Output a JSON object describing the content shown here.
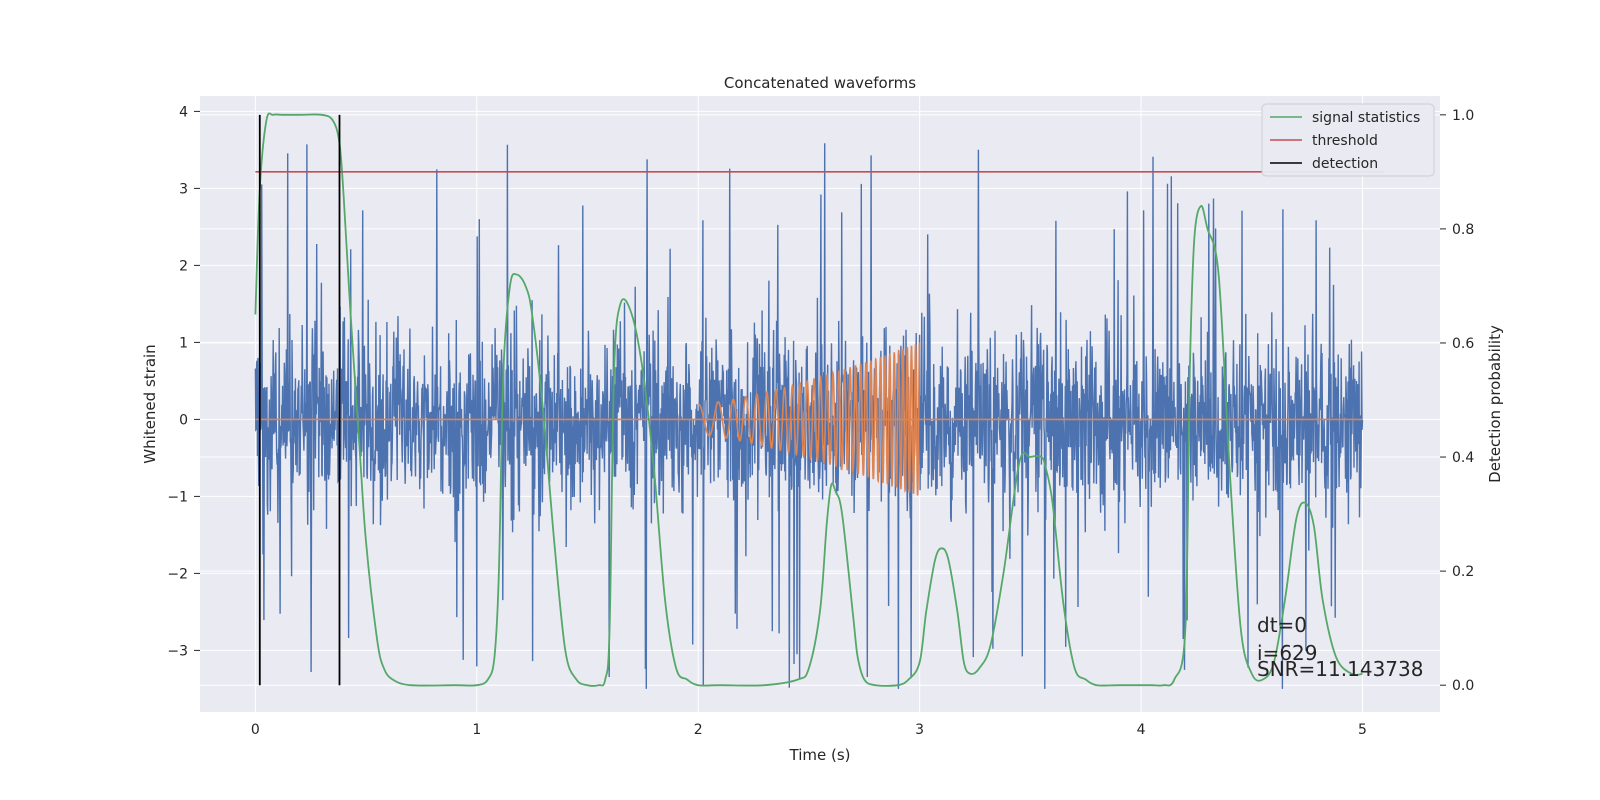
{
  "chart_data": {
    "type": "line",
    "title": "Concatenated waveforms",
    "xlabel": "Time (s)",
    "ylabel": "Whitened strain",
    "y2label": "Detection probability",
    "xlim": [
      -0.25,
      5.35
    ],
    "ylim": [
      -3.8,
      4.2
    ],
    "y2lim": [
      -0.047,
      1.033
    ],
    "xticks": [
      0,
      1,
      2,
      3,
      4,
      5
    ],
    "yticks": [
      -3,
      -2,
      -1,
      0,
      1,
      2,
      3,
      4
    ],
    "y2ticks": [
      0.0,
      0.2,
      0.4,
      0.6,
      0.8,
      1.0
    ],
    "y2ticklabels": [
      "0.0",
      "0.2",
      "0.4",
      "0.6",
      "0.8",
      "1.0"
    ],
    "ytick_labels": [
      "−3",
      "−2",
      "−1",
      "0",
      "1",
      "2",
      "3",
      "4"
    ],
    "grid": true,
    "colors": {
      "strain": "#4c72b0",
      "injection": "#dd8452",
      "signal_statistics": "#55a868",
      "threshold": "#c44e52",
      "detection": "#000000",
      "background": "#eaeaf2",
      "grid": "#ffffff"
    },
    "legend": {
      "location": "top-right",
      "entries": [
        "signal statistics",
        "threshold",
        "detection"
      ]
    },
    "series": [
      {
        "name": "signal statistics",
        "axis": "right",
        "x": [
          0,
          0.02,
          0.05,
          0.08,
          0.12,
          0.2,
          0.3,
          0.35,
          0.38,
          0.4,
          0.43,
          0.47,
          0.5,
          0.55,
          0.58,
          0.62,
          0.7,
          0.9,
          1.0,
          1.05,
          1.08,
          1.1,
          1.12,
          1.15,
          1.18,
          1.22,
          1.25,
          1.3,
          1.35,
          1.4,
          1.45,
          1.5,
          1.55,
          1.58,
          1.6,
          1.62,
          1.65,
          1.7,
          1.75,
          1.8,
          1.85,
          1.9,
          1.95,
          2.0,
          2.1,
          2.3,
          2.45,
          2.5,
          2.55,
          2.58,
          2.6,
          2.62,
          2.65,
          2.7,
          2.72,
          2.75,
          2.8,
          2.9,
          2.95,
          3.0,
          3.03,
          3.07,
          3.1,
          3.13,
          3.17,
          3.2,
          3.23,
          3.27,
          3.32,
          3.38,
          3.45,
          3.5,
          3.55,
          3.57,
          3.6,
          3.65,
          3.7,
          3.75,
          3.8,
          3.9,
          4.0,
          4.05,
          4.1,
          4.15,
          4.2,
          4.22,
          4.24,
          4.27,
          4.3,
          4.35,
          4.4,
          4.45,
          4.5,
          4.55,
          4.6,
          4.65,
          4.7,
          4.74,
          4.78,
          4.82,
          4.88,
          4.95,
          5.0
        ],
        "values": [
          0.65,
          0.87,
          0.99,
          1.0,
          1.0,
          1.0,
          1.0,
          0.99,
          0.95,
          0.85,
          0.65,
          0.42,
          0.25,
          0.08,
          0.03,
          0.01,
          0.0,
          0.0,
          0.0,
          0.01,
          0.05,
          0.2,
          0.55,
          0.7,
          0.72,
          0.7,
          0.65,
          0.48,
          0.25,
          0.06,
          0.01,
          0.0,
          0.0,
          0.01,
          0.1,
          0.55,
          0.67,
          0.65,
          0.55,
          0.38,
          0.15,
          0.03,
          0.01,
          0.0,
          0.0,
          0.0,
          0.01,
          0.03,
          0.13,
          0.28,
          0.35,
          0.34,
          0.3,
          0.12,
          0.05,
          0.01,
          0.0,
          0.0,
          0.01,
          0.04,
          0.13,
          0.22,
          0.24,
          0.22,
          0.13,
          0.04,
          0.02,
          0.03,
          0.07,
          0.2,
          0.39,
          0.4,
          0.4,
          0.38,
          0.32,
          0.14,
          0.03,
          0.01,
          0.0,
          0.0,
          0.0,
          0.0,
          0.0,
          0.01,
          0.1,
          0.55,
          0.78,
          0.84,
          0.8,
          0.72,
          0.38,
          0.1,
          0.02,
          0.01,
          0.04,
          0.15,
          0.29,
          0.32,
          0.28,
          0.15,
          0.05,
          0.02,
          0.02
        ]
      },
      {
        "name": "threshold",
        "axis": "right",
        "x": [
          0,
          5.1
        ],
        "values": [
          0.9,
          0.9
        ]
      },
      {
        "name": "detection",
        "axis": "right",
        "type": "vlines",
        "x": [
          0.02,
          0.38
        ],
        "range": [
          0.0,
          1.0
        ]
      }
    ],
    "strain_noise": {
      "axis": "left",
      "x_range": [
        0,
        5
      ],
      "typical_amplitude": 1.2,
      "peak_amplitude": 3.6,
      "seed": 629
    },
    "injection": {
      "axis": "left",
      "type": "chirp",
      "x_range": [
        2,
        3
      ],
      "amplitude_start": 0.2,
      "amplitude_end": 1.0,
      "cycles_start": 9,
      "cycles_end": 55
    },
    "annotations": [
      "dt=0",
      "i=629",
      "SNR=11.143738"
    ]
  }
}
